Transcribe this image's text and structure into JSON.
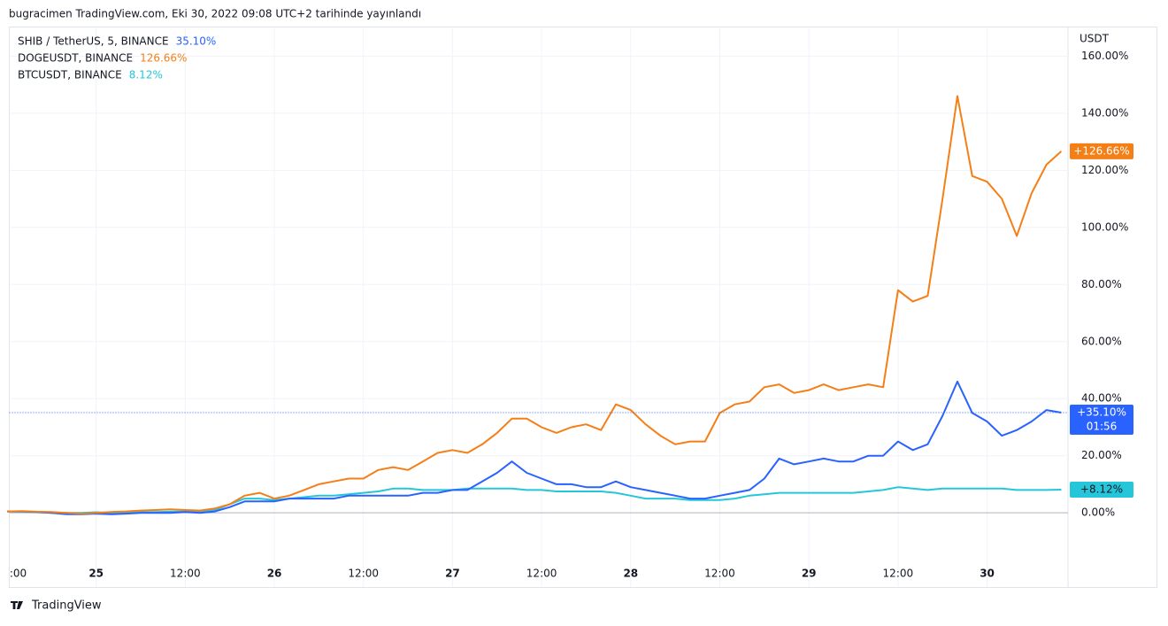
{
  "header": "bugracimen TradingView.com, Eki 30, 2022 09:08 UTC+2 tarihinde yayınlandı",
  "footer": "TradingView",
  "chart_data": {
    "type": "line",
    "y_axis_label": "USDT",
    "grid": true,
    "countdown": "01:56",
    "x": [
      12,
      14,
      16,
      18,
      20,
      22,
      24,
      26,
      28,
      30,
      32,
      34,
      36,
      38,
      40,
      42,
      44,
      46,
      48,
      50,
      52,
      54,
      56,
      58,
      60,
      62,
      64,
      66,
      68,
      70,
      72,
      74,
      76,
      78,
      80,
      82,
      84,
      86,
      88,
      90,
      92,
      94,
      96,
      98,
      100,
      102,
      104,
      106,
      108,
      110,
      112,
      114,
      116,
      118,
      120,
      122,
      124,
      126,
      128,
      130,
      132,
      134,
      136,
      138,
      140,
      142,
      144,
      146,
      148,
      150,
      152,
      154
    ],
    "xlim": [
      12.3,
      154.9
    ],
    "xticks": [
      {
        "value": 12,
        "label": ":00"
      },
      {
        "value": 24,
        "label": "25"
      },
      {
        "value": 36,
        "label": "12:00"
      },
      {
        "value": 48,
        "label": "26"
      },
      {
        "value": 60,
        "label": "12:00"
      },
      {
        "value": 72,
        "label": "27"
      },
      {
        "value": 84,
        "label": "12:00"
      },
      {
        "value": 96,
        "label": "28"
      },
      {
        "value": 108,
        "label": "12:00"
      },
      {
        "value": 120,
        "label": "29"
      },
      {
        "value": 132,
        "label": "12:00"
      },
      {
        "value": 144,
        "label": "30"
      }
    ],
    "ylim": [
      -26,
      170.2
    ],
    "yticks": [
      {
        "value": 0,
        "label": "0.00%"
      },
      {
        "value": 20,
        "label": "20.00%"
      },
      {
        "value": 40,
        "label": "40.00%"
      },
      {
        "value": 60,
        "label": "60.00%"
      },
      {
        "value": 80,
        "label": "80.00%"
      },
      {
        "value": 100,
        "label": "100.00%"
      },
      {
        "value": 120,
        "label": "120.00%"
      },
      {
        "value": 140,
        "label": "140.00%"
      },
      {
        "value": 160,
        "label": "160.00%"
      }
    ],
    "series": [
      {
        "name": "SHIB / TetherUS, 5, BINANCE",
        "color": "#2962ff",
        "legend_label": "35.10%",
        "tag_label": "+35.10%",
        "values": [
          0.5,
          0.5,
          0.3,
          0,
          -0.5,
          -0.5,
          -0.3,
          -0.5,
          -0.3,
          0,
          0,
          0,
          0.3,
          0,
          0.5,
          2,
          4,
          4,
          4,
          5,
          5,
          5,
          5,
          6,
          6,
          6,
          6,
          6,
          7,
          7,
          8,
          8,
          11,
          14,
          18,
          14,
          12,
          10,
          10,
          9,
          9,
          11,
          9,
          8,
          7,
          6,
          5,
          5,
          6,
          7,
          8,
          12,
          19,
          17,
          18,
          19,
          18,
          18,
          20,
          20,
          25,
          22,
          24,
          34,
          46,
          35,
          32,
          27,
          29,
          32,
          36,
          35.1
        ]
      },
      {
        "name": "DOGEUSDT, BINANCE",
        "color": "#f57f17",
        "legend_label": "126.66%",
        "tag_label": "+126.66%",
        "values": [
          0.5,
          0.6,
          0.4,
          0.3,
          0,
          -0.3,
          0,
          0.3,
          0.5,
          0.8,
          1,
          1.2,
          1,
          0.8,
          1.5,
          3,
          6,
          7,
          5,
          6,
          8,
          10,
          11,
          12,
          12,
          15,
          16,
          15,
          18,
          21,
          22,
          21,
          24,
          28,
          33,
          33,
          30,
          28,
          30,
          31,
          29,
          38,
          36,
          31,
          27,
          24,
          25,
          25,
          35,
          38,
          39,
          44,
          45,
          42,
          43,
          45,
          43,
          44,
          45,
          44,
          78,
          74,
          76,
          110,
          146,
          118,
          116,
          110,
          97,
          112,
          122,
          126.66
        ]
      },
      {
        "name": "BTCUSDT, BINANCE",
        "color": "#26c6da",
        "legend_label": "8.12%",
        "tag_label": "+8.12%",
        "values": [
          0.5,
          0.4,
          0.2,
          0,
          0,
          0,
          0.2,
          0,
          0,
          0.2,
          0.3,
          0.4,
          0.5,
          0.5,
          1,
          3,
          5,
          5,
          4.5,
          5,
          5.5,
          6,
          6,
          6.5,
          7,
          7.5,
          8.5,
          8.5,
          8,
          8,
          8,
          8.5,
          8.5,
          8.5,
          8.5,
          8,
          8,
          7.5,
          7.5,
          7.5,
          7.5,
          7,
          6,
          5,
          5,
          5,
          4.5,
          4.5,
          4.5,
          5,
          6,
          6.5,
          7,
          7,
          7,
          7,
          7,
          7,
          7.5,
          8,
          9,
          8.5,
          8,
          8.5,
          8.5,
          8.5,
          8.5,
          8.5,
          8,
          8,
          8,
          8.12
        ]
      }
    ]
  }
}
